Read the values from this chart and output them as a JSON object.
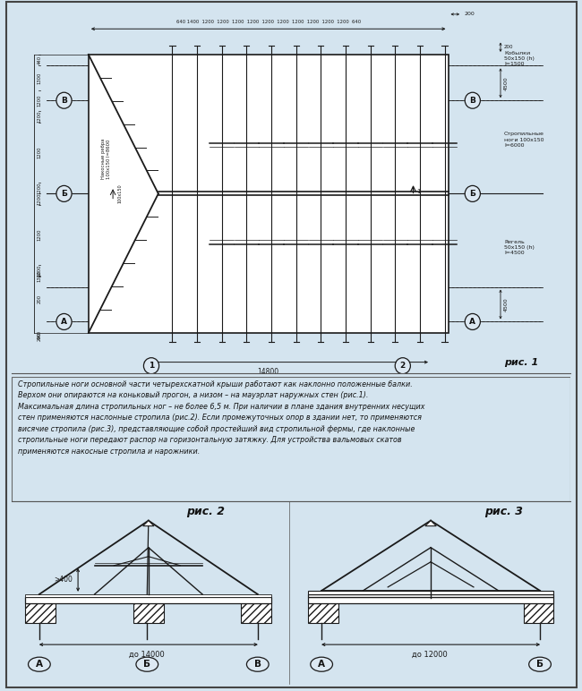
{
  "bg_color": "#d4e4ef",
  "panel_bg": "#dce8f2",
  "line_color": "#1a1a1a",
  "text_color": "#111111",
  "hatch_color": "#888888",
  "title_fig1": "рис. 1",
  "title_fig2": "рис. 2",
  "title_fig3": "рис. 3",
  "description_text": "Стропильные ноги основной части четырехскатной крыши работают как наклонно положенные балки.\nВерхом они опираются на коньковый прогон, а низом – на мауэрлат наружных стен (рис.1).\nМаксимальная длина стропильных ног – не более 6,5 м. При наличии в плане здания внутренних несущих\nстен применяются наслонные стропила (рис.2). Если промежуточных опор в здании нет, то применяются\nвисячие стропила (рис.3), представляющие собой простейший вид стропильной фермы, где наклонные\nстропильные ноги передают распор на горизонтальную затяжку. Для устройства вальмовых скатов\nприменяются накосные стропила и нарожники.",
  "cobylki_label": "Кобылки\n50х150 (h)\nl=1500",
  "strop_label": "Стропильные\nноги 100х150\nl=6000",
  "rigel_label": "Ригель\n50х150 (h)\nl=4500",
  "nakos_label": "Накосные ребра\n100х150 l=8600",
  "fig2_width_label": "до 14000",
  "fig3_width_label": "до 12000",
  "fig2_height_label": ">400"
}
